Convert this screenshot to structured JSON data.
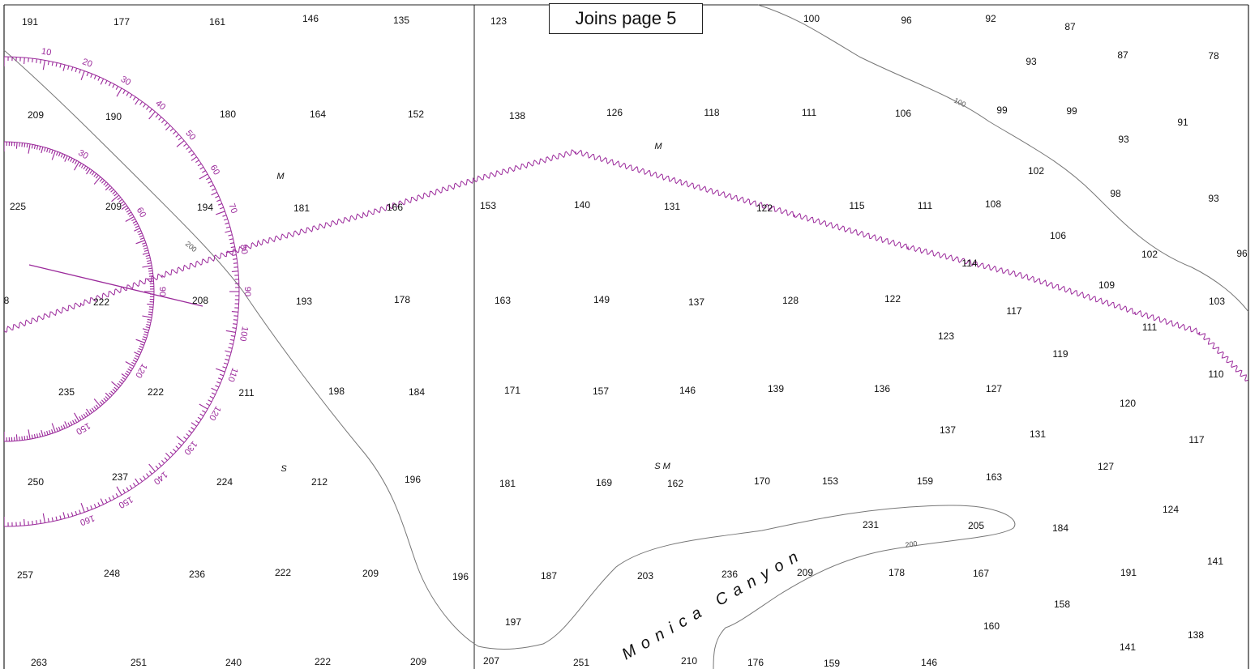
{
  "joins_label": "Joins page 5",
  "canyon_label": "Monica Canyon",
  "colors": {
    "compass_rose": "#9b2a9b",
    "contour": "#777777",
    "cable": "#9b2a9b",
    "border": "#222222"
  },
  "contour_labels": [
    "200",
    "100",
    "200"
  ],
  "bottom_marks": [
    "M",
    "M",
    "S",
    "S M"
  ],
  "rose_degree_labels": [
    "10",
    "20",
    "30",
    "40",
    "50",
    "60",
    "70",
    "80",
    "90",
    "100",
    "110",
    "120",
    "130",
    "140",
    "150",
    "160"
  ],
  "inner_rose_labels": [
    "30",
    "60",
    "90",
    "120",
    "150"
  ],
  "soundings": [
    "191",
    "177",
    "161",
    "146",
    "135",
    "123",
    "100",
    "96",
    "92",
    "87",
    "93",
    "87",
    "78",
    "209",
    "190",
    "180",
    "164",
    "152",
    "138",
    "126",
    "118",
    "111",
    "106",
    "99",
    "99",
    "91",
    "93",
    "225",
    "209",
    "194",
    "181",
    "166",
    "153",
    "140",
    "131",
    "122",
    "115",
    "111",
    "108",
    "102",
    "98",
    "93",
    "106",
    "102",
    "96",
    "8",
    "222",
    "208",
    "193",
    "178",
    "163",
    "149",
    "137",
    "128",
    "122",
    "114",
    "117",
    "109",
    "103",
    "111",
    "123",
    "119",
    "110",
    "235",
    "222",
    "211",
    "198",
    "184",
    "171",
    "157",
    "146",
    "139",
    "136",
    "127",
    "120",
    "137",
    "131",
    "117",
    "250",
    "237",
    "224",
    "212",
    "196",
    "181",
    "169",
    "162",
    "170",
    "153",
    "159",
    "163",
    "127",
    "124",
    "257",
    "248",
    "236",
    "222",
    "209",
    "196",
    "187",
    "203",
    "236",
    "209",
    "231",
    "205",
    "178",
    "167",
    "184",
    "191",
    "141",
    "197",
    "158",
    "160",
    "263",
    "251",
    "240",
    "222",
    "209",
    "207",
    "251",
    "210",
    "176",
    "159",
    "146",
    "141",
    "138"
  ]
}
